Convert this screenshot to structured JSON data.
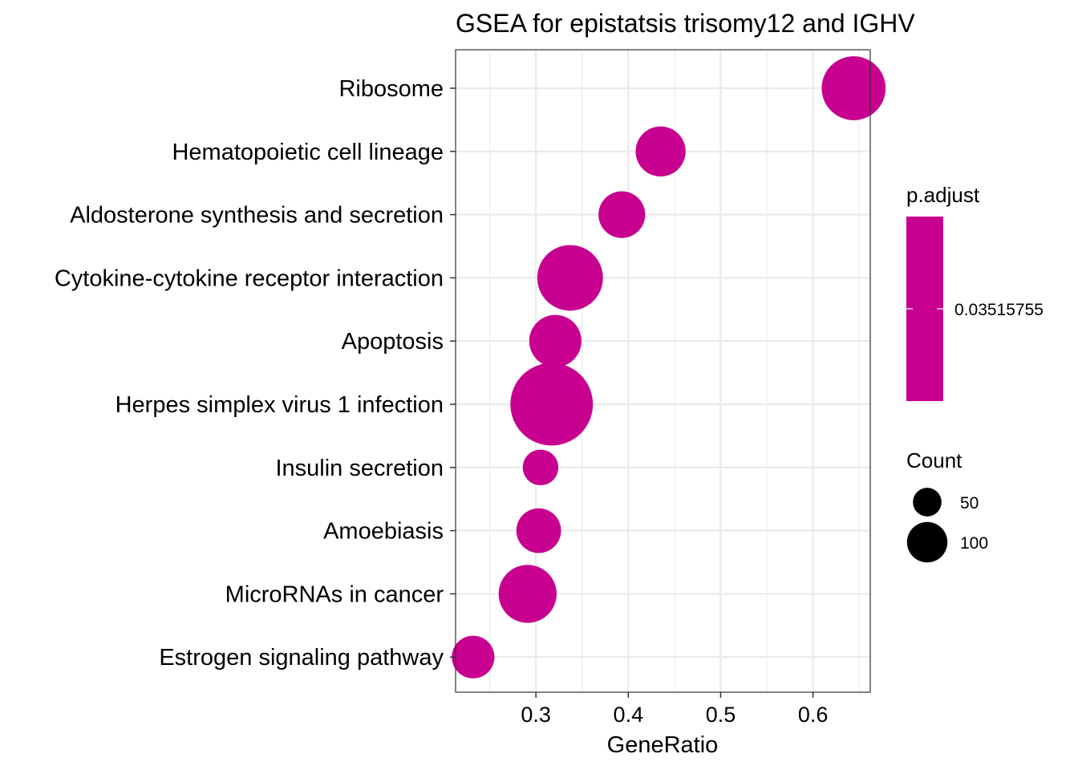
{
  "chart_data": {
    "type": "scatter",
    "title": "GSEA for epistatsis trisomy12 and IGHV",
    "xlabel": "GeneRatio",
    "ylabel": "",
    "xlim": [
      0.213,
      0.662
    ],
    "x_ticks": [
      0.3,
      0.4,
      0.5,
      0.6
    ],
    "x_tick_labels": [
      "0.3",
      "0.4",
      "0.5",
      "0.6"
    ],
    "grid": true,
    "categories": [
      "Ribosome",
      "Hematopoietic cell lineage",
      "Aldosterone synthesis and secretion",
      "Cytokine-cytokine receptor interaction",
      "Apoptosis",
      "Herpes simplex virus 1 infection",
      "Insulin secretion",
      "Amoebiasis",
      "MicroRNAs in cancer",
      "Estrogen signaling pathway"
    ],
    "points": [
      {
        "label": "Ribosome",
        "x": 0.644,
        "count": 90
      },
      {
        "label": "Hematopoietic cell lineage",
        "x": 0.435,
        "count": 55
      },
      {
        "label": "Aldosterone synthesis and secretion",
        "x": 0.393,
        "count": 48
      },
      {
        "label": "Cytokine-cytokine receptor interaction",
        "x": 0.337,
        "count": 95
      },
      {
        "label": "Apoptosis",
        "x": 0.321,
        "count": 60
      },
      {
        "label": "Herpes simplex virus 1 infection",
        "x": 0.317,
        "count": 150
      },
      {
        "label": "Insulin secretion",
        "x": 0.305,
        "count": 28
      },
      {
        "label": "Amoebiasis",
        "x": 0.303,
        "count": 44
      },
      {
        "label": "MicroRNAs in cancer",
        "x": 0.291,
        "count": 74
      },
      {
        "label": "Estrogen signaling pathway",
        "x": 0.232,
        "count": 40
      }
    ],
    "point_color": "#c8008f",
    "color_legend": {
      "title": "p.adjust",
      "value_label": "0.03515755",
      "color": "#c8008f"
    },
    "size_legend": {
      "title": "Count",
      "entries": [
        {
          "label": "50",
          "count": 50
        },
        {
          "label": "100",
          "count": 100
        }
      ]
    }
  }
}
